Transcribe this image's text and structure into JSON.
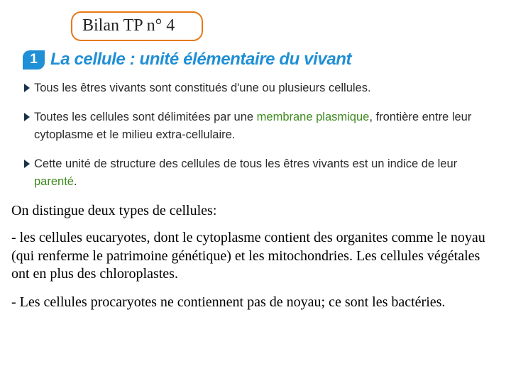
{
  "title": "Bilan TP n° 4",
  "heading": {
    "number": "1",
    "text": "La cellule : unité élémentaire du vivant"
  },
  "bullets": {
    "b1": "Tous les êtres vivants sont constitués d'une ou plusieurs cellules.",
    "b2_pre": "Toutes les cellules sont délimitées par une ",
    "b2_kw": "membrane plasmique",
    "b2_post": ", frontière entre leur cytoplasme et le milieu extra-cellulaire.",
    "b3_pre": "Cette unité de structure des cellules de tous les êtres vivants est un indice de leur ",
    "b3_kw": "parenté",
    "b3_post": "."
  },
  "paragraphs": {
    "p1": "On distingue deux types de cellules:",
    "p2": " - les cellules eucaryotes, dont le cytoplasme contient des organites comme le noyau (qui renferme le patrimoine génétique) et les mitochondries. Les cellules végétales ont en plus des chloroplastes.",
    "p3": "- Les cellules procaryotes ne contiennent pas de noyau; ce sont les bactéries."
  },
  "colors": {
    "accent_orange": "#e67817",
    "accent_blue": "#1f8fd6",
    "keyword_green": "#3f8a1f",
    "bullet_dark": "#18324a",
    "text": "#2a2a2a",
    "background": "#ffffff"
  }
}
